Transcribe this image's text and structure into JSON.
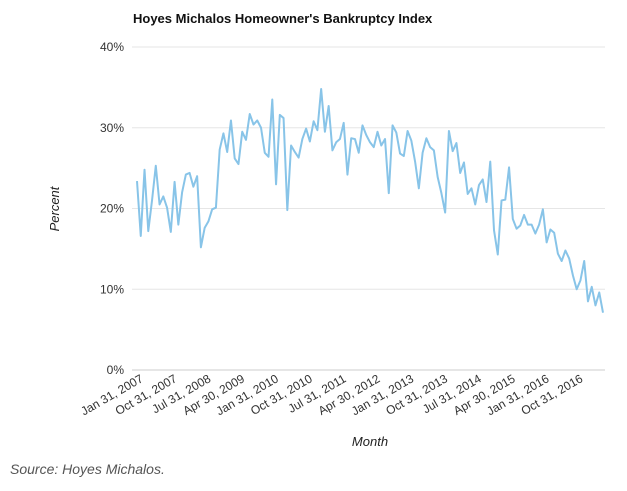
{
  "chart_data": {
    "type": "line",
    "title": "Hoyes Michalos Homeowner's Bankruptcy Index",
    "xlabel": "Month",
    "ylabel": "Percent",
    "source": "Source: Hoyes Michalos.",
    "ylim": [
      0,
      40
    ],
    "y_ticks": [
      "0%",
      "10%",
      "20%",
      "30%",
      "40%"
    ],
    "y_tick_values": [
      0,
      10,
      20,
      30,
      40
    ],
    "x_tick_labels": [
      "Jan 31, 2007",
      "Oct 31, 2007",
      "Jul 31, 2008",
      "Apr 30, 2009",
      "Jan 31, 2010",
      "Oct 31, 2010",
      "Jul 31, 2011",
      "Apr 30, 2012",
      "Jan 31, 2013",
      "Oct 31, 2013",
      "Jul 31, 2014",
      "Apr 30, 2015",
      "Jan 31, 2016",
      "Oct 31, 2016"
    ],
    "x_tick_index": [
      0,
      9,
      18,
      27,
      36,
      45,
      54,
      63,
      72,
      81,
      90,
      99,
      108,
      117
    ],
    "grid": "horizontal",
    "line_color": "#88c4e8",
    "series": [
      {
        "values": [
          23.4,
          16.6,
          24.8,
          17.2,
          21.0,
          25.3,
          20.5,
          21.5,
          20.1,
          17.1,
          23.3,
          18.0,
          22.0,
          24.2,
          24.4,
          22.7,
          24.0,
          15.2,
          17.6,
          18.4,
          19.9,
          20.1,
          27.3,
          29.3,
          27.0,
          30.9,
          26.2,
          25.5,
          29.5,
          28.5,
          31.7,
          30.4,
          30.9,
          30.0,
          26.9,
          26.4,
          33.5,
          23.0,
          31.6,
          31.2,
          19.8,
          27.8,
          27.0,
          26.3,
          28.6,
          29.9,
          28.3,
          30.8,
          29.7,
          34.8,
          29.5,
          32.7,
          27.2,
          28.2,
          28.6,
          30.6,
          24.2,
          28.7,
          28.6,
          26.9,
          30.3,
          29.1,
          28.2,
          27.6,
          29.5,
          27.8,
          28.6,
          21.9,
          30.3,
          29.4,
          26.8,
          26.5,
          29.6,
          28.4,
          25.8,
          22.5,
          26.9,
          28.7,
          27.6,
          27.2,
          23.9,
          21.9,
          19.5,
          29.6,
          27.1,
          28.1,
          24.4,
          25.7,
          21.8,
          22.5,
          20.5,
          22.9,
          23.6,
          20.8,
          25.8,
          17.3,
          14.3,
          21.0,
          21.1,
          25.1,
          18.7,
          17.5,
          17.9,
          19.2,
          18.0,
          18.0,
          16.9,
          18.0,
          19.9,
          15.8,
          17.4,
          17.0,
          14.4,
          13.5,
          14.8,
          13.8,
          11.7,
          10.0,
          11.1,
          13.5,
          8.5,
          10.3,
          8.0,
          9.6,
          7.1
        ]
      }
    ]
  }
}
